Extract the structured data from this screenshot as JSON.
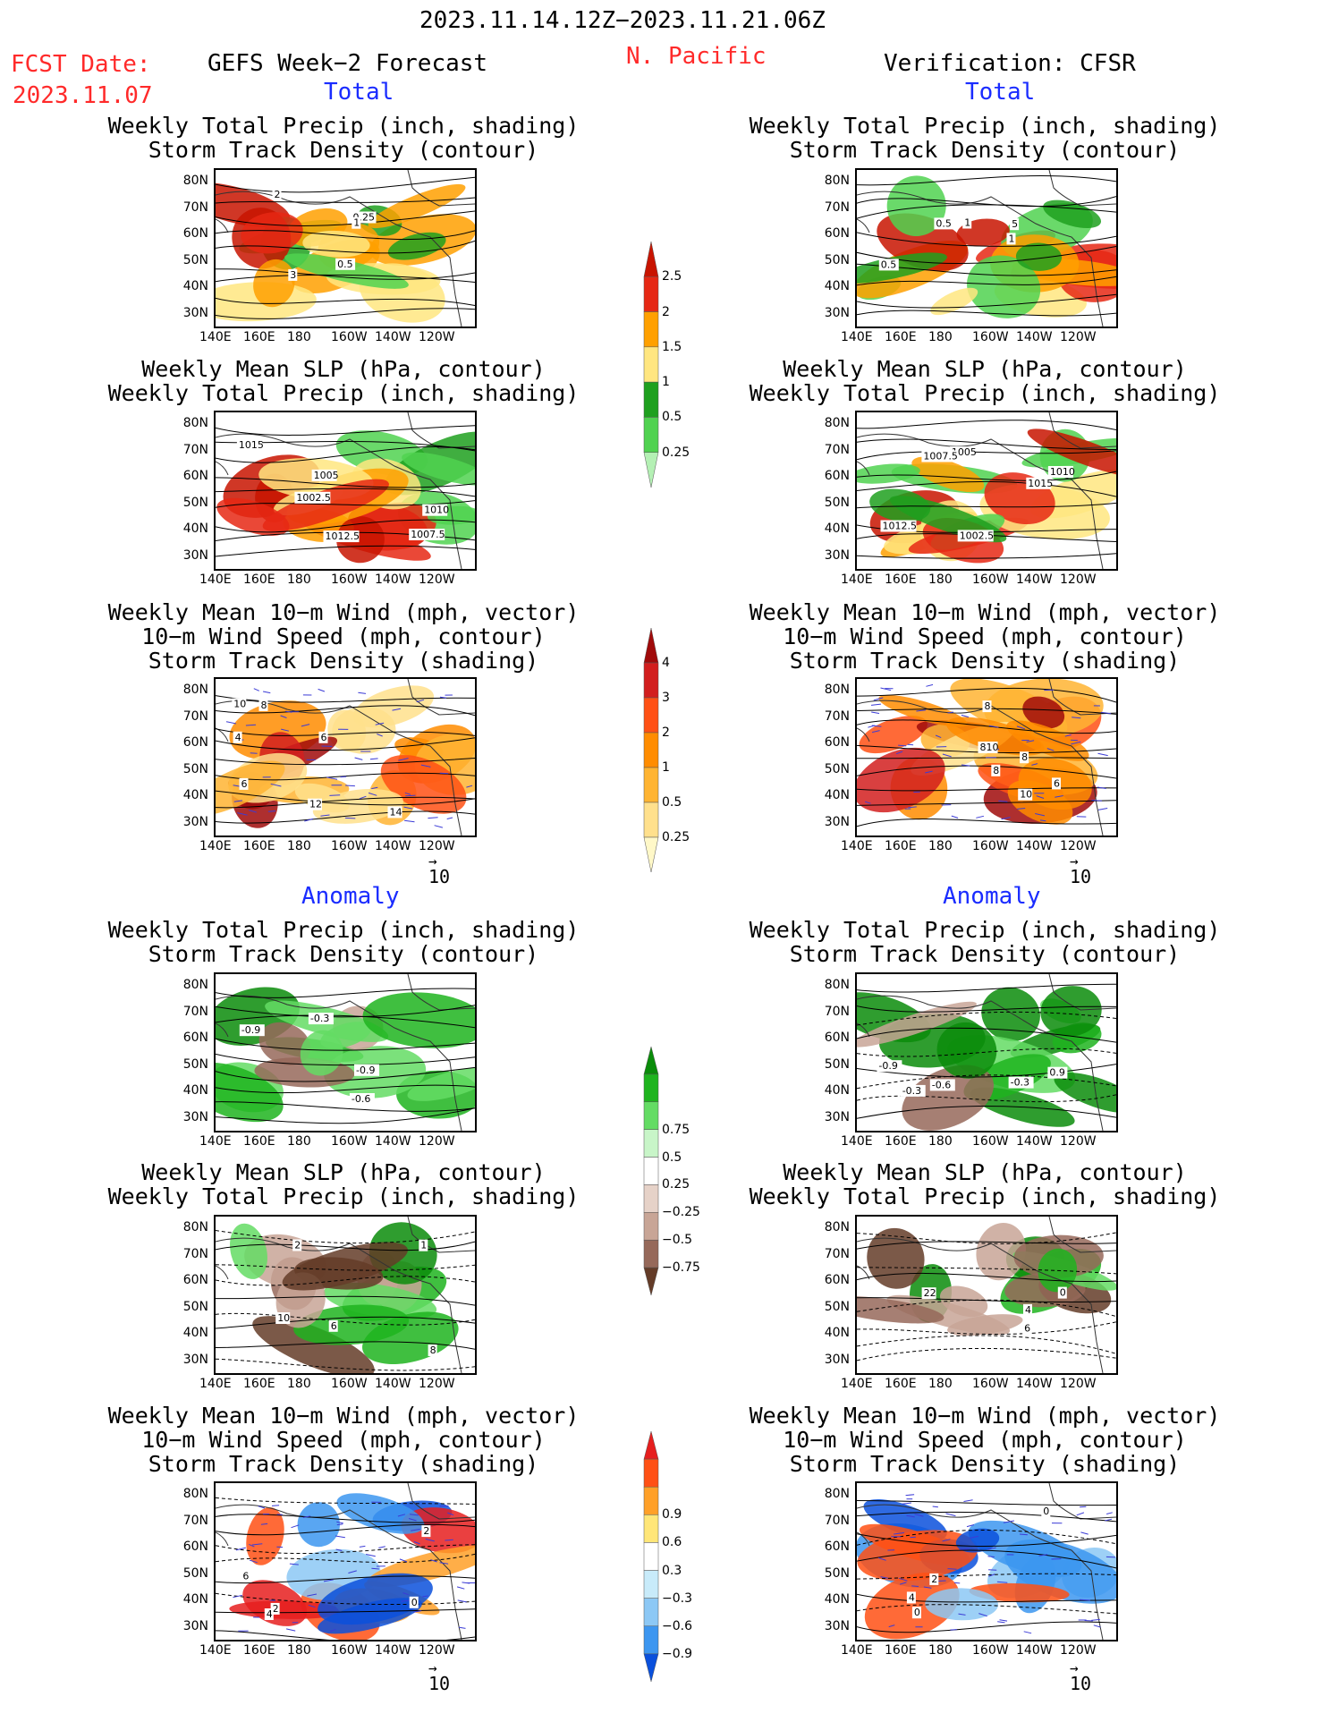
{
  "header": {
    "date_range": "2023.11.14.12Z−2023.11.21.06Z",
    "fcst_label": "FCST Date:",
    "fcst_date": "2023.11.07",
    "left_title": "GEFS Week−2 Forecast",
    "region": "N. Pacific",
    "right_title": "Verification: CFSR"
  },
  "sections": {
    "total": "Total",
    "anomaly": "Anomaly"
  },
  "panel_titles": {
    "precip_track": "Weekly Total Precip (inch, shading)\nStorm Track Density (contour)",
    "slp_precip": "Weekly Mean SLP (hPa, contour)\nWeekly Total Precip (inch, shading)",
    "wind_track": "Weekly Mean 10−m Wind (mph, vector)\n10−m Wind Speed (mph, contour)\nStorm Track Density (shading)"
  },
  "axes": {
    "lat_ticks": [
      "80N",
      "70N",
      "60N",
      "50N",
      "40N",
      "30N"
    ],
    "lon_ticks": [
      "140E",
      "160E",
      "180",
      "160W",
      "140W",
      "120W"
    ]
  },
  "vector_ref": "10",
  "colorbars": {
    "precip": {
      "levels": [
        "0.25",
        "0.5",
        "1",
        "1.5",
        "2",
        "2.5"
      ],
      "colors": [
        "#b4f0b4",
        "#50d250",
        "#1ea01e",
        "#ffe680",
        "#ffa000",
        "#e62814",
        "#c81400"
      ]
    },
    "track": {
      "levels": [
        "0.25",
        "0.5",
        "1",
        "2",
        "3",
        "4"
      ],
      "colors": [
        "#fff8c8",
        "#ffe08c",
        "#ffb432",
        "#ff8c00",
        "#ff5014",
        "#d21e1e",
        "#a00a0a"
      ]
    },
    "precip_anom": {
      "levels": [
        "-0.75",
        "-0.5",
        "-0.25",
        "0.25",
        "0.5",
        "0.75"
      ],
      "labels": [
        "−0.75",
        "−0.5",
        "−0.25",
        "0.25",
        "0.5",
        "0.75"
      ],
      "colors": [
        "#643c28",
        "#96695a",
        "#c8a596",
        "#e6d2c8",
        "#ffffff",
        "#c8f5c8",
        "#64dc64",
        "#1eb41e",
        "#0a8c0a"
      ]
    },
    "track_anom": {
      "levels": [
        "-0.9",
        "-0.6",
        "-0.3",
        "0.3",
        "0.6",
        "0.9"
      ],
      "labels": [
        "−0.9",
        "−0.6",
        "−0.3",
        "0.3",
        "0.6",
        "0.9"
      ],
      "colors": [
        "#0a50dc",
        "#3c96f0",
        "#8cc8f5",
        "#c8ebfa",
        "#ffffff",
        "#ffe678",
        "#ffa028",
        "#ff5014",
        "#e61e1e"
      ]
    }
  },
  "contour_labels": {
    "p1L": [
      "2",
      "3",
      "0.5",
      "0.25",
      "1"
    ],
    "p1R": [
      "5",
      "0.5",
      "1",
      "0.5",
      "1"
    ],
    "p2L": [
      "1007.5",
      "1005",
      "1002.5",
      "1012.5",
      "1010",
      "1015"
    ],
    "p2R": [
      "1005",
      "1002.5",
      "1007.5",
      "1010",
      "1012.5",
      "1015"
    ],
    "p3L": [
      "4",
      "6",
      "10",
      "8",
      "12",
      "14",
      "6"
    ],
    "p3R": [
      "8",
      "810",
      "10",
      "8",
      "8",
      "6"
    ],
    "p4L": [
      "-0.9",
      "-0.9",
      "-0.6",
      "-0.3"
    ],
    "p4R": [
      "-0.6",
      "0.9",
      "-0.3",
      "-0.9",
      "-0.3"
    ],
    "p5L": [
      "8",
      "6",
      "10",
      "2",
      "1"
    ],
    "p5R": [
      "22",
      "6",
      "4",
      "0"
    ],
    "p6L": [
      "2",
      "0",
      "2",
      "6",
      "4"
    ],
    "p6R": [
      "4",
      "0",
      "2",
      "0"
    ]
  }
}
